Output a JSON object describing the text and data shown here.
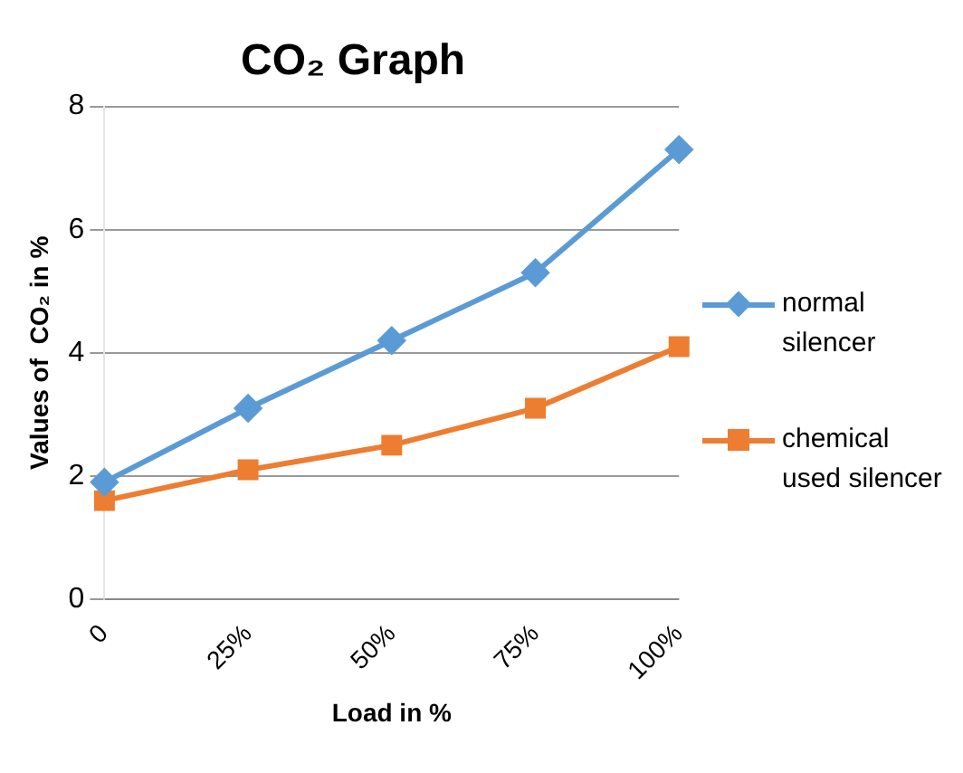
{
  "chart_data": {
    "type": "line",
    "title": "CO₂ Graph",
    "xlabel": "Load in %",
    "ylabel": "Values of  CO₂ in %",
    "categories": [
      "0",
      "25%",
      "50%",
      "75%",
      "100%"
    ],
    "series": [
      {
        "name": "normal silencer",
        "color": "#5b9bd5",
        "marker": "diamond",
        "values": [
          1.9,
          3.1,
          4.2,
          5.3,
          7.3
        ]
      },
      {
        "name": "chemical used silencer",
        "color": "#ed7d31",
        "marker": "square",
        "values": [
          1.6,
          2.1,
          2.5,
          3.1,
          4.1
        ]
      }
    ],
    "ylim": [
      0,
      8
    ],
    "yticks": [
      0,
      2,
      4,
      6,
      8
    ],
    "grid": "y",
    "legend": "right",
    "line_style": "solid"
  }
}
